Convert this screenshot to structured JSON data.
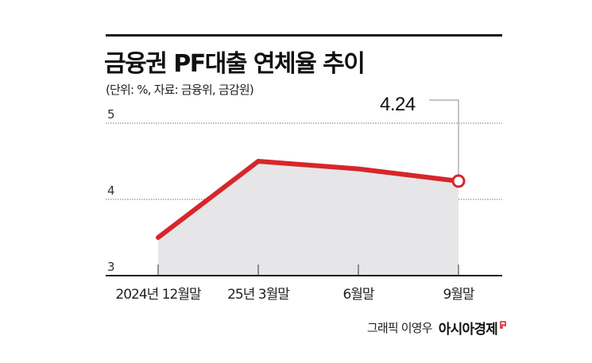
{
  "header": {
    "title": "금융권 PF대출 연체율 추이",
    "subtitle": "(단위: %, 자료: 금융위, 금감원)"
  },
  "footer": {
    "author": "그래픽 이영우",
    "brand": "아시아경제",
    "brand_mark_color": "#d7262b"
  },
  "colors": {
    "line": "#d7262b",
    "area": "#e6e6e8",
    "grid": "#777777",
    "axis": "#1a1a1a"
  },
  "chart_data": {
    "type": "line",
    "title": "금융권 PF대출 연체율 추이",
    "subtitle": "(단위: %, 자료: 금융위, 금감원)",
    "xlabel": "",
    "ylabel": "%",
    "categories": [
      "2024년 12월말",
      "25년 3월말",
      "6월말",
      "9월말"
    ],
    "series": [
      {
        "name": "PF대출 연체율",
        "values": [
          3.5,
          4.5,
          4.4,
          4.24
        ]
      }
    ],
    "ylim": [
      3,
      5
    ],
    "yticks": [
      3,
      4,
      5
    ],
    "grid": "horizontal dotted at 4 and 5",
    "area_fill": true,
    "annotations": [
      {
        "category": "9월말",
        "label": "4.24",
        "marker": "hollow circle"
      }
    ],
    "legend": "none"
  }
}
